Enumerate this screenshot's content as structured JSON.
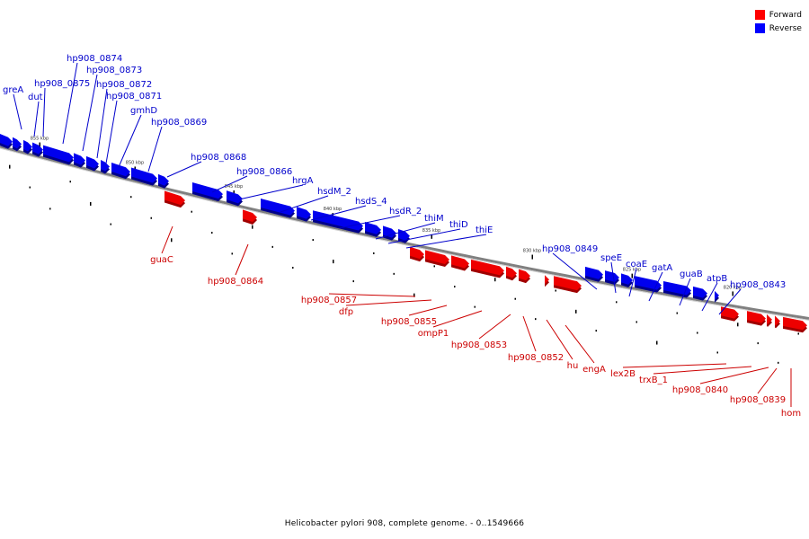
{
  "legend": [
    {
      "label": "Forward",
      "color": "#ff0000"
    },
    {
      "label": "Reverse",
      "color": "#0000ff"
    }
  ],
  "caption": "Helicobacter pylori 908, complete genome. - 0..1549666",
  "colors": {
    "forward": "#ee0000",
    "forward_dark": "#a00000",
    "reverse": "#0000ee",
    "reverse_dark": "#00008a",
    "backbone": "#808080"
  },
  "ticks": [
    "855 kbp",
    "850 kbp",
    "845 kbp",
    "840 kbp",
    "835 kbp",
    "830 kbp",
    "825 kbp",
    "820 kbp"
  ],
  "reverse_genes": [
    "greA",
    "dut",
    "hp908_0875",
    "hp908_0874",
    "hp908_0873",
    "hp908_0872",
    "hp908_0871",
    "gmhD",
    "hp908_0869",
    "hp908_0868",
    "hp908_0866",
    "hrgA",
    "hsdM_2",
    "hsdS_4",
    "hsdR_2",
    "thiM",
    "thiD",
    "thiE",
    "hp908_0849",
    "speE",
    "coaE",
    "gatA",
    "guaB",
    "atpB",
    "hp908_0843"
  ],
  "forward_genes": [
    "guaC",
    "hp908_0864",
    "hp908_0857",
    "dfp",
    "hp908_0855",
    "ompP1",
    "hp908_0853",
    "hp908_0852",
    "hu",
    "engA",
    "lex2B",
    "trxB_1",
    "hp908_0840",
    "hp908_0839",
    "hom"
  ]
}
